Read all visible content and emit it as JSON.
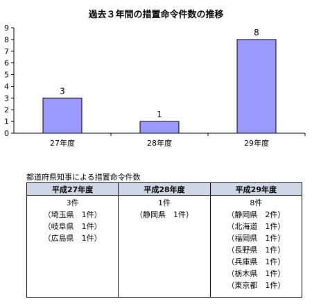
{
  "chart_data": {
    "type": "bar",
    "title": "過去３年間の措置命令件数の推移",
    "categories": [
      "27年度",
      "28年度",
      "29年度"
    ],
    "values": [
      3,
      1,
      8
    ],
    "ylim": [
      0,
      9
    ],
    "yticks": [
      "0",
      "1",
      "2",
      "3",
      "4",
      "5",
      "6",
      "7",
      "8",
      "9"
    ],
    "data_labels": [
      "3",
      "1",
      "8"
    ],
    "bar_color": "#9999ff",
    "grid": false,
    "legend": "none"
  },
  "table": {
    "caption": "都道府県知事による措置命令件数",
    "headers": [
      "平成27年度",
      "平成28年度",
      "平成29年度"
    ],
    "columns": [
      {
        "total": "3件",
        "items": [
          "（埼玉県　1件）",
          "（岐阜県　1件）",
          "（広島県　1件）"
        ]
      },
      {
        "total": "1件",
        "items": [
          "（静岡県　1件）"
        ]
      },
      {
        "total": "8件",
        "items": [
          "（静岡県　2件）",
          "（北海道　1件）",
          "（福岡県　1件）",
          "（長野県　1件）",
          "（兵庫県　1件）",
          "（栃木県　1件）",
          "（東京都　1件）"
        ]
      }
    ]
  }
}
